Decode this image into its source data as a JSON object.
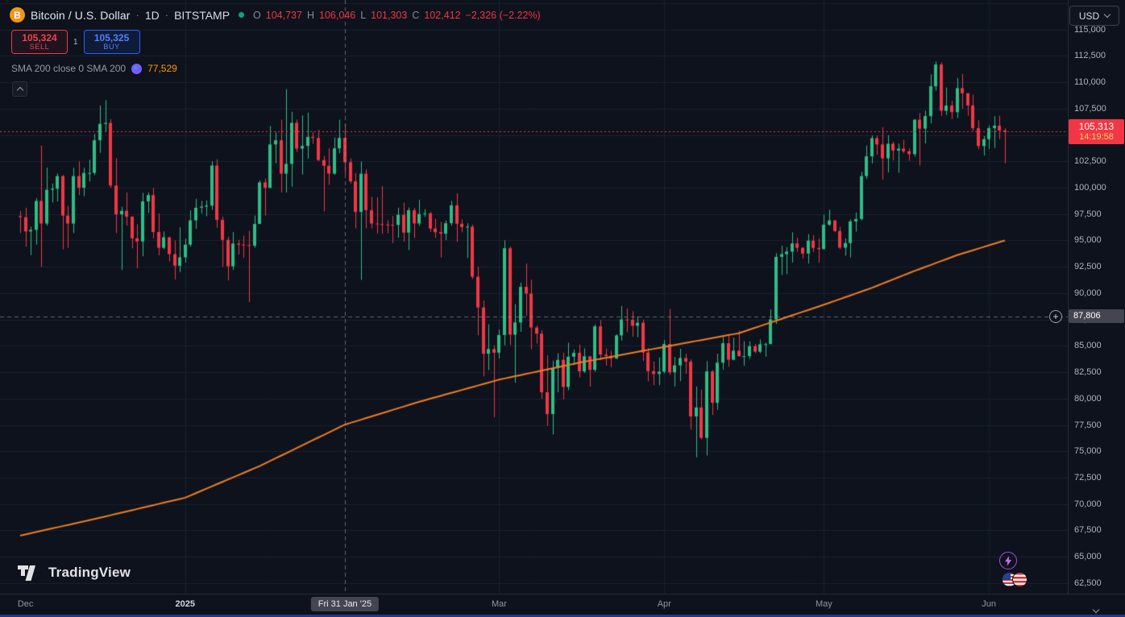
{
  "colors": {
    "up": "#2ebd85",
    "down": "#f23645",
    "sma": "#ef7d23",
    "grid": "#1a2130",
    "crosshair": "rgba(150,157,170,0.6)",
    "accent_blue": "#2962ff",
    "label_bg": "#434651",
    "current_label_bg": "#f23645"
  },
  "header": {
    "symbol_title": "Bitcoin / U.S. Dollar",
    "separator": "·",
    "interval": "1D",
    "exchange": "BITSTAMP",
    "ohlc": {
      "o_label": "O",
      "o": "104,737",
      "h_label": "H",
      "h": "106,046",
      "l_label": "L",
      "l": "101,303",
      "c_label": "C",
      "c": "102,412",
      "change": "−2,326 (−2.22%)"
    },
    "sell_price": "105,324",
    "sell_label": "SELL",
    "spread": "1",
    "buy_price": "105,325",
    "buy_label": "BUY",
    "indicator": {
      "name": "SMA 200 close 0 SMA 200",
      "value": "77,529"
    }
  },
  "price_scale": {
    "currency": "USD",
    "ticks": [
      "115,000",
      "112,500",
      "110,000",
      "107,500",
      "105,000",
      "102,500",
      "100,000",
      "97,500",
      "95,000",
      "92,500",
      "90,000",
      "87,500",
      "85,000",
      "82,500",
      "80,000",
      "77,500",
      "75,000",
      "72,500",
      "70,000",
      "67,500",
      "65,000",
      "62,500"
    ],
    "current": {
      "price": "105,313",
      "countdown": "14:19:58"
    },
    "crosshair_price": "87,806",
    "plus_glyph": "+"
  },
  "time_scale": {
    "labels": [
      {
        "text": "Dec",
        "index": 1,
        "style": "month"
      },
      {
        "text": "2025",
        "index": 31,
        "style": "year"
      },
      {
        "text": "Fri 31 Jan '25",
        "index": 61,
        "style": "crosshair"
      },
      {
        "text": "Mar",
        "index": 90,
        "style": "month"
      },
      {
        "text": "Apr",
        "index": 121,
        "style": "month"
      },
      {
        "text": "May",
        "index": 151,
        "style": "month"
      },
      {
        "text": "Jun",
        "index": 182,
        "style": "month"
      }
    ]
  },
  "watermark": {
    "brand": "TradingView"
  },
  "chart_data": {
    "type": "candlestick",
    "title": "Bitcoin / U.S. Dollar",
    "exchange": "BITSTAMP",
    "interval": "1D",
    "start_date": "2024-12-01",
    "end_date": "2025-06-04",
    "y_axis": {
      "max": 117800,
      "min": 61500,
      "tick_step": 2500
    },
    "current_price": 105313,
    "crosshair": {
      "index": 61,
      "price": 87806,
      "date_label": "Fri 31 Jan '25"
    },
    "month_grid_indices": [
      31,
      90,
      121,
      151,
      182
    ],
    "sma200_anchors": [
      [
        0,
        67000
      ],
      [
        15,
        68700
      ],
      [
        31,
        70600
      ],
      [
        45,
        73600
      ],
      [
        61,
        77529
      ],
      [
        75,
        79700
      ],
      [
        90,
        81800
      ],
      [
        105,
        83400
      ],
      [
        121,
        84900
      ],
      [
        135,
        86200
      ],
      [
        151,
        88900
      ],
      [
        160,
        90500
      ],
      [
        168,
        92100
      ],
      [
        176,
        93600
      ],
      [
        185,
        95000
      ]
    ],
    "candles": [
      [
        97300,
        97800,
        95700,
        97200
      ],
      [
        97200,
        98100,
        94400,
        95850
      ],
      [
        95850,
        96300,
        93600,
        96000
      ],
      [
        96000,
        99000,
        94600,
        98750
      ],
      [
        98750,
        104000,
        92500,
        96600
      ],
      [
        96600,
        101900,
        96400,
        99800
      ],
      [
        99800,
        100400,
        98600,
        99900
      ],
      [
        99900,
        101350,
        98700,
        101100
      ],
      [
        101100,
        101200,
        94150,
        97350
      ],
      [
        97350,
        98270,
        94300,
        96600
      ],
      [
        96600,
        101900,
        95700,
        101100
      ],
      [
        101100,
        102500,
        99300,
        100000
      ],
      [
        100000,
        101900,
        99200,
        101400
      ],
      [
        101400,
        102650,
        100600,
        101400
      ],
      [
        101400,
        105100,
        101200,
        104500
      ],
      [
        104500,
        107800,
        103300,
        106050
      ],
      [
        106050,
        108300,
        105300,
        106140
      ],
      [
        106140,
        106500,
        100000,
        100200
      ],
      [
        100200,
        102800,
        95700,
        97470
      ],
      [
        97470,
        98200,
        92200,
        97800
      ],
      [
        97800,
        99550,
        96400,
        97250
      ],
      [
        97250,
        97300,
        94250,
        95200
      ],
      [
        95200,
        96540,
        92350,
        94900
      ],
      [
        94900,
        99500,
        93500,
        98700
      ],
      [
        98700,
        99550,
        97600,
        99300
      ],
      [
        99300,
        99965,
        95200,
        95800
      ],
      [
        95800,
        97550,
        93600,
        94300
      ],
      [
        94300,
        95850,
        94150,
        95300
      ],
      [
        95300,
        95350,
        93000,
        93700
      ],
      [
        93700,
        95000,
        91300,
        92600
      ],
      [
        92600,
        96250,
        92000,
        93400
      ],
      [
        93400,
        95150,
        92900,
        94600
      ],
      [
        94600,
        97850,
        94400,
        96900
      ],
      [
        96900,
        98950,
        96100,
        98100
      ],
      [
        98100,
        98750,
        97550,
        98200
      ],
      [
        98200,
        98800,
        97300,
        98300
      ],
      [
        98300,
        102500,
        97900,
        102100
      ],
      [
        102100,
        102700,
        96200,
        96950
      ],
      [
        96950,
        97250,
        92500,
        95050
      ],
      [
        95050,
        95350,
        91200,
        92550
      ],
      [
        92550,
        95800,
        92200,
        94700
      ],
      [
        94700,
        95050,
        93650,
        94600
      ],
      [
        94600,
        95450,
        93350,
        94550
      ],
      [
        94550,
        95900,
        89150,
        94500
      ],
      [
        94500,
        97350,
        94300,
        96560
      ],
      [
        96560,
        100700,
        96550,
        100500
      ],
      [
        100500,
        100850,
        97350,
        99990
      ],
      [
        99990,
        105850,
        99950,
        104100
      ],
      [
        104100,
        105250,
        102300,
        104500
      ],
      [
        104500,
        106450,
        99550,
        101330
      ],
      [
        101330,
        109350,
        99550,
        102260
      ],
      [
        102260,
        107200,
        100100,
        106150
      ],
      [
        106150,
        106450,
        103400,
        103700
      ],
      [
        103700,
        106850,
        101250,
        103960
      ],
      [
        103960,
        107120,
        102750,
        104820
      ],
      [
        104820,
        105300,
        104170,
        104720
      ],
      [
        104720,
        105500,
        102520,
        102620
      ],
      [
        102620,
        103000,
        97750,
        102080
      ],
      [
        102080,
        103740,
        100270,
        101330
      ],
      [
        101330,
        104770,
        101230,
        103730
      ],
      [
        103730,
        106450,
        103270,
        104720
      ],
      [
        104737,
        106046,
        101303,
        102412
      ],
      [
        102412,
        102780,
        100400,
        100600
      ],
      [
        100600,
        101400,
        96150,
        97700
      ],
      [
        97700,
        102500,
        91250,
        101330
      ],
      [
        101330,
        101730,
        96150,
        97870
      ],
      [
        97870,
        99150,
        96150,
        96600
      ],
      [
        96600,
        99100,
        95650,
        96550
      ],
      [
        96550,
        100150,
        95620,
        96500
      ],
      [
        96500,
        96900,
        95670,
        96480
      ],
      [
        96480,
        97320,
        94750,
        96470
      ],
      [
        96470,
        98100,
        95250,
        97430
      ],
      [
        97430,
        98590,
        94880,
        95740
      ],
      [
        95740,
        98130,
        94090,
        97860
      ],
      [
        97860,
        98080,
        95220,
        96610
      ],
      [
        96610,
        98840,
        96380,
        97500
      ],
      [
        97500,
        97960,
        97220,
        97570
      ],
      [
        97570,
        97710,
        95810,
        96120
      ],
      [
        96120,
        97050,
        95230,
        95780
      ],
      [
        95780,
        96750,
        93380,
        95640
      ],
      [
        95640,
        96900,
        95030,
        96630
      ],
      [
        96630,
        98760,
        96400,
        98330
      ],
      [
        98330,
        99475,
        94870,
        96580
      ],
      [
        96580,
        96990,
        95770,
        96270
      ],
      [
        96270,
        96640,
        93330,
        96300
      ],
      [
        96300,
        96500,
        91350,
        91550
      ],
      [
        91550,
        92500,
        86000,
        88640
      ],
      [
        88640,
        89300,
        82100,
        84250
      ],
      [
        84250,
        87050,
        82700,
        84700
      ],
      [
        84700,
        85050,
        78240,
        84350
      ],
      [
        84350,
        86550,
        83800,
        86030
      ],
      [
        86030,
        95000,
        85050,
        94260
      ],
      [
        94260,
        94420,
        85080,
        86060
      ],
      [
        86060,
        88960,
        81500,
        87220
      ],
      [
        87220,
        91000,
        86330,
        90600
      ],
      [
        90600,
        92800,
        87850,
        89960
      ],
      [
        89960,
        91280,
        84670,
        86740
      ],
      [
        86740,
        86900,
        85220,
        86150
      ],
      [
        86150,
        86500,
        80000,
        80600
      ],
      [
        80600,
        84100,
        77420,
        78530
      ],
      [
        78530,
        83600,
        76600,
        82900
      ],
      [
        82900,
        84300,
        80600,
        83670
      ],
      [
        83670,
        84340,
        79930,
        81100
      ],
      [
        81100,
        85310,
        80800,
        83970
      ],
      [
        83970,
        84670,
        83200,
        84340
      ],
      [
        84340,
        85120,
        82000,
        82580
      ],
      [
        82580,
        84760,
        82430,
        84010
      ],
      [
        84010,
        84020,
        81130,
        82720
      ],
      [
        82720,
        87040,
        82550,
        86850
      ],
      [
        86850,
        87450,
        83650,
        84170
      ],
      [
        84170,
        84750,
        83130,
        84040
      ],
      [
        84040,
        84530,
        83000,
        83790
      ],
      [
        83790,
        86100,
        83770,
        85990
      ],
      [
        85990,
        88770,
        85500,
        87500
      ],
      [
        87500,
        88540,
        86290,
        87470
      ],
      [
        87470,
        88290,
        85860,
        86900
      ],
      [
        86900,
        87790,
        85810,
        87190
      ],
      [
        87190,
        87490,
        83550,
        84370
      ],
      [
        84370,
        84790,
        81640,
        82600
      ],
      [
        82600,
        83510,
        81250,
        82330
      ],
      [
        82330,
        83900,
        81270,
        82550
      ],
      [
        82550,
        85550,
        82400,
        85170
      ],
      [
        85170,
        88500,
        82250,
        82490
      ],
      [
        82490,
        83950,
        81150,
        83150
      ],
      [
        83150,
        84720,
        81650,
        83850
      ],
      [
        83850,
        84250,
        82350,
        83500
      ],
      [
        83500,
        83750,
        77050,
        78300
      ],
      [
        78300,
        81150,
        74420,
        79160
      ],
      [
        79160,
        80850,
        76150,
        76270
      ],
      [
        76270,
        83550,
        74600,
        82570
      ],
      [
        82570,
        82700,
        78450,
        79600
      ],
      [
        79600,
        84250,
        78940,
        83400
      ],
      [
        83400,
        85860,
        82750,
        85250
      ],
      [
        85250,
        86000,
        83020,
        83680
      ],
      [
        83680,
        85780,
        83620,
        84540
      ],
      [
        84540,
        86450,
        83970,
        84030
      ],
      [
        84030,
        85440,
        83110,
        84030
      ],
      [
        84030,
        85430,
        83760,
        84960
      ],
      [
        84960,
        85180,
        84300,
        84450
      ],
      [
        84450,
        85600,
        84310,
        85150
      ],
      [
        85150,
        85300,
        83970,
        85170
      ],
      [
        85170,
        88450,
        85140,
        87510
      ],
      [
        87510,
        93800,
        87060,
        93440
      ],
      [
        93440,
        94500,
        91700,
        93700
      ],
      [
        93700,
        94350,
        91800,
        93940
      ],
      [
        93940,
        95770,
        92900,
        94720
      ],
      [
        94720,
        95250,
        93920,
        94300
      ],
      [
        94300,
        94350,
        93300,
        93750
      ],
      [
        93750,
        95600,
        92800,
        94980
      ],
      [
        94980,
        95490,
        93910,
        94280
      ],
      [
        94280,
        95200,
        92900,
        94180
      ],
      [
        94180,
        97440,
        94130,
        96490
      ],
      [
        96490,
        97910,
        96370,
        96900
      ],
      [
        96900,
        96940,
        95780,
        95890
      ],
      [
        95890,
        96300,
        94170,
        94310
      ],
      [
        94310,
        95200,
        93550,
        94750
      ],
      [
        94750,
        97000,
        93390,
        96800
      ],
      [
        96800,
        97650,
        95830,
        97030
      ],
      [
        97030,
        101500,
        96890,
        101100
      ],
      [
        101100,
        104000,
        100850,
        102970
      ],
      [
        102970,
        104950,
        102300,
        104700
      ],
      [
        104700,
        104950,
        103110,
        104100
      ],
      [
        104100,
        105750,
        100750,
        102780
      ],
      [
        102780,
        104980,
        101450,
        104170
      ],
      [
        104170,
        104350,
        102600,
        103520
      ],
      [
        103520,
        104190,
        101400,
        103700
      ],
      [
        103700,
        104550,
        103250,
        103450
      ],
      [
        103450,
        103720,
        102550,
        103180
      ],
      [
        103180,
        106500,
        102950,
        106450
      ],
      [
        106450,
        107100,
        102100,
        105600
      ],
      [
        105600,
        107300,
        104200,
        106790
      ],
      [
        106790,
        110750,
        106100,
        109620
      ],
      [
        109620,
        111970,
        109220,
        111680
      ],
      [
        111680,
        111880,
        106800,
        107290
      ],
      [
        107290,
        109500,
        106900,
        107790
      ],
      [
        107790,
        108250,
        106500,
        107160
      ],
      [
        107160,
        110400,
        106600,
        109440
      ],
      [
        109440,
        110800,
        107500,
        108960
      ],
      [
        108960,
        108970,
        106820,
        107800
      ],
      [
        107800,
        108800,
        105400,
        105640
      ],
      [
        105640,
        106400,
        103650,
        103950
      ],
      [
        103950,
        104900,
        103050,
        104600
      ],
      [
        104600,
        105900,
        103670,
        105650
      ],
      [
        105650,
        106780,
        103770,
        105880
      ],
      [
        105880,
        106830,
        104600,
        105430
      ],
      [
        105430,
        105640,
        102310,
        105313
      ]
    ]
  }
}
